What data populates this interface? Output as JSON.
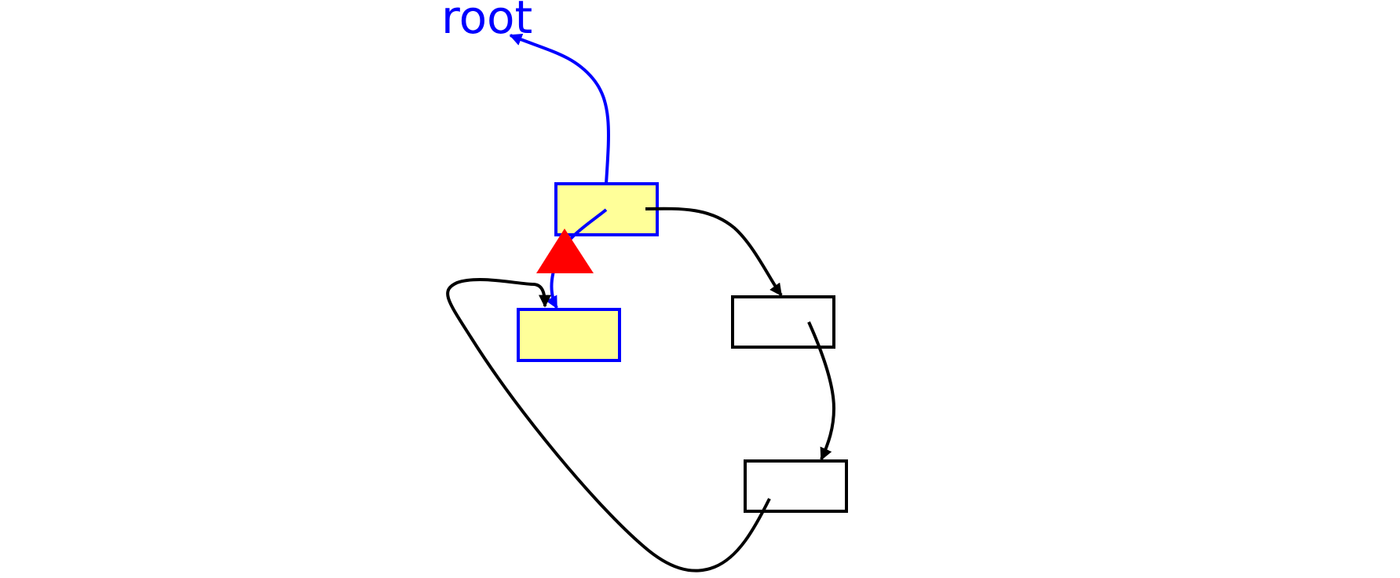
{
  "diagram": {
    "root_label": "root",
    "colors": {
      "highlight_stroke": "#0000ff",
      "highlight_fill": "#ffff99",
      "normal_stroke": "#000000",
      "normal_fill": "#ffffff",
      "marker": "#ff0000",
      "background": "#ffffff"
    },
    "nodes": [
      {
        "id": "node-top",
        "style": "highlighted"
      },
      {
        "id": "node-left",
        "style": "highlighted"
      },
      {
        "id": "node-right",
        "style": "normal"
      },
      {
        "id": "node-bottom",
        "style": "normal"
      }
    ],
    "edges": [
      {
        "from": "node-top",
        "to": "root",
        "style": "highlighted"
      },
      {
        "from": "node-top",
        "to": "node-left",
        "style": "highlighted"
      },
      {
        "from": "node-top",
        "to": "node-right",
        "style": "normal"
      },
      {
        "from": "node-right",
        "to": "node-bottom",
        "style": "normal"
      },
      {
        "from": "node-bottom",
        "to": "node-left",
        "style": "normal"
      }
    ],
    "marker_icon": "warning-triangle-icon"
  }
}
